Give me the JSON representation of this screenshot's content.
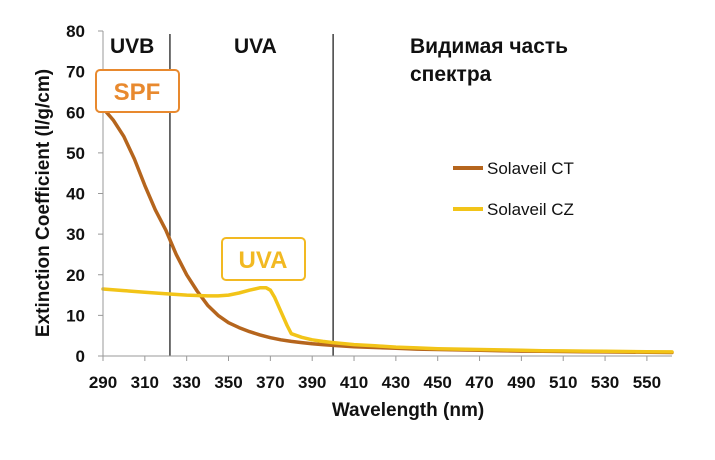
{
  "chart_data": {
    "type": "line",
    "title": "",
    "xlabel": "Wavelength (nm)",
    "ylabel": "Extinction Coefficient (l/g/cm)",
    "xlim": [
      290,
      562
    ],
    "ylim": [
      0,
      80
    ],
    "x_ticks": [
      "290",
      "310",
      "330",
      "350",
      "370",
      "390",
      "410",
      "430",
      "450",
      "470",
      "490",
      "510",
      "530",
      "550"
    ],
    "y_ticks": [
      "0",
      "10",
      "20",
      "30",
      "40",
      "50",
      "60",
      "70",
      "80"
    ],
    "grid": false,
    "legend_position": "right",
    "regions": [
      {
        "label": "UVB"
      },
      {
        "label": "UVA"
      },
      {
        "label_line1": "Видимая часть",
        "label_line2": "спектра"
      }
    ],
    "region_boundaries": [
      322,
      400
    ],
    "callouts": [
      {
        "label": "SPF",
        "color": "#E8892E"
      },
      {
        "label": "UVA",
        "color": "#F2B922"
      }
    ],
    "series": [
      {
        "name": "Solaveil CT",
        "color": "#B5651D",
        "x": [
          290,
          295,
          300,
          305,
          310,
          315,
          320,
          325,
          330,
          335,
          340,
          345,
          350,
          355,
          360,
          365,
          370,
          375,
          380,
          385,
          390,
          395,
          400,
          410,
          420,
          430,
          440,
          450,
          460,
          470,
          480,
          490,
          500,
          510,
          520,
          530,
          540,
          550,
          562
        ],
        "y": [
          61,
          58,
          54,
          48.5,
          42,
          36,
          31,
          25,
          20,
          16,
          12.5,
          10,
          8.2,
          7,
          6,
          5.2,
          4.5,
          4,
          3.6,
          3.3,
          3,
          2.8,
          2.6,
          2.3,
          2.1,
          1.9,
          1.7,
          1.6,
          1.5,
          1.4,
          1.3,
          1.2,
          1.15,
          1.1,
          1.05,
          1,
          0.95,
          0.9,
          0.85
        ]
      },
      {
        "name": "Solaveil CZ",
        "color": "#F2C418",
        "x": [
          290,
          300,
          310,
          320,
          330,
          340,
          345,
          350,
          355,
          360,
          365,
          368,
          370,
          372,
          375,
          378,
          380,
          385,
          390,
          395,
          400,
          410,
          420,
          430,
          440,
          450,
          460,
          470,
          480,
          490,
          500,
          510,
          520,
          530,
          540,
          550,
          562
        ],
        "y": [
          16.5,
          16.1,
          15.7,
          15.3,
          15,
          14.8,
          14.8,
          15,
          15.5,
          16.2,
          16.8,
          16.8,
          16.2,
          14.5,
          11,
          7.5,
          5.5,
          4.6,
          4,
          3.6,
          3.3,
          2.8,
          2.5,
          2.2,
          2,
          1.8,
          1.7,
          1.6,
          1.5,
          1.4,
          1.3,
          1.25,
          1.2,
          1.15,
          1.1,
          1.05,
          1
        ]
      }
    ]
  }
}
